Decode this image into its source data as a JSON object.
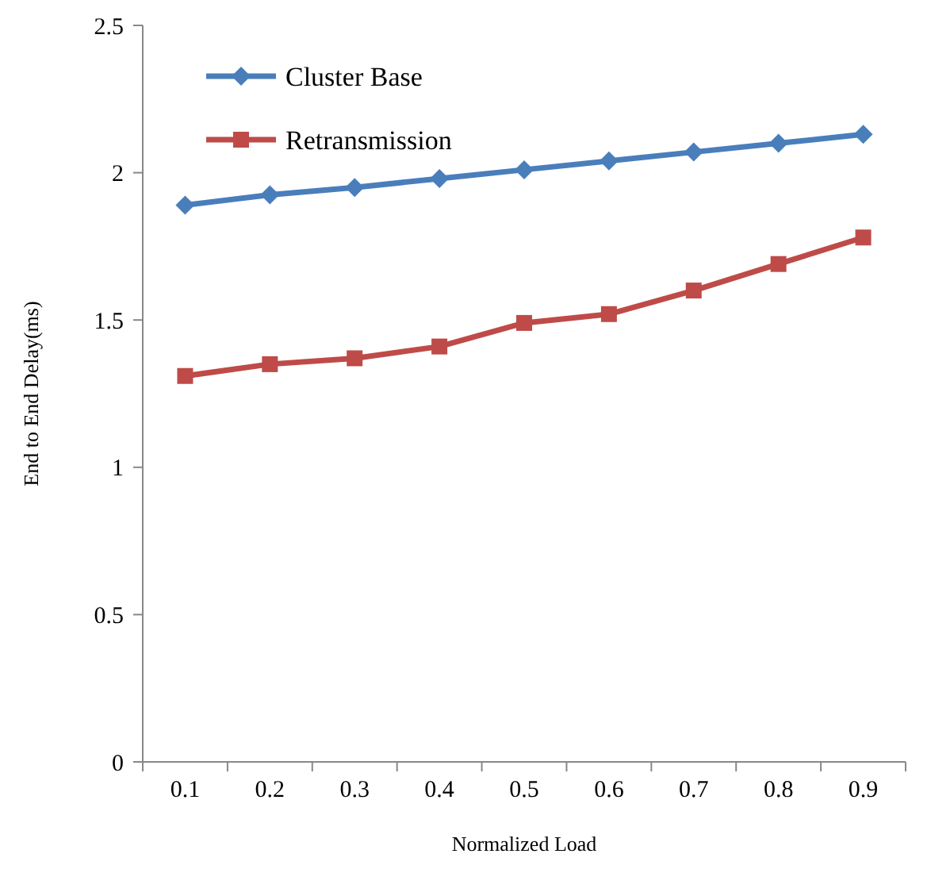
{
  "chart_data": {
    "type": "line",
    "xlabel": "Normalized Load",
    "ylabel": "End to End Delay(ms)",
    "categories": [
      "0.1",
      "0.2",
      "0.3",
      "0.4",
      "0.5",
      "0.6",
      "0.7",
      "0.8",
      "0.9"
    ],
    "series": [
      {
        "name": "Cluster Base",
        "color": "#4a7ebb",
        "marker": "diamond",
        "values": [
          1.89,
          1.925,
          1.95,
          1.98,
          2.01,
          2.04,
          2.07,
          2.1,
          2.13
        ]
      },
      {
        "name": "Retransmission",
        "color": "#be4b48",
        "marker": "square",
        "values": [
          1.31,
          1.35,
          1.37,
          1.41,
          1.49,
          1.52,
          1.6,
          1.69,
          1.78
        ]
      }
    ],
    "ylim": [
      0,
      2.5
    ],
    "yticks": [
      0,
      0.5,
      1,
      1.5,
      2,
      2.5
    ],
    "grid": false,
    "legend": "top left",
    "line_style": "solid"
  }
}
